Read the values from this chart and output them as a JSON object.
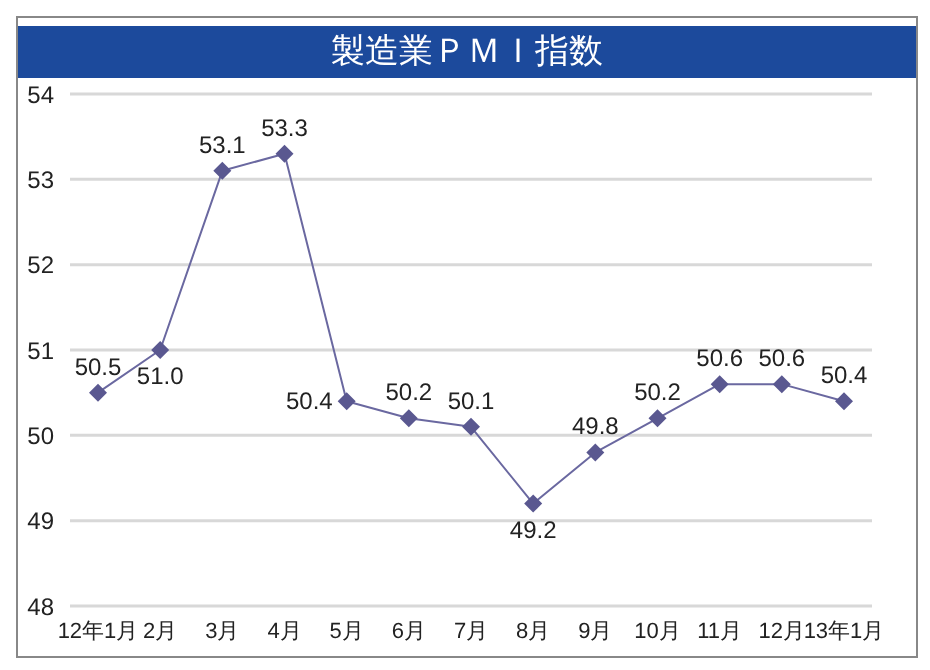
{
  "chart_data": {
    "type": "line",
    "title": "製造業ＰＭＩ指数",
    "categories": [
      "12年1月",
      "2月",
      "3月",
      "4月",
      "5月",
      "6月",
      "7月",
      "8月",
      "9月",
      "10月",
      "11月",
      "12月",
      "13年1月"
    ],
    "series": [
      {
        "color": "#6a68a0",
        "values": [
          50.5,
          51.0,
          53.1,
          53.3,
          50.4,
          50.2,
          50.1,
          49.2,
          49.8,
          50.2,
          50.6,
          50.6,
          50.4
        ],
        "value_labels": [
          "50.5",
          "51.0",
          "53.1",
          "53.3",
          "50.4",
          "50.2",
          "50.1",
          "49.2",
          "49.8",
          "50.2",
          "50.6",
          "50.6",
          "50.4"
        ]
      }
    ],
    "ylim": [
      48,
      54
    ],
    "yticks": [
      48,
      49,
      50,
      51,
      52,
      53,
      54
    ],
    "grid": "y",
    "marker": "diamond",
    "line_style": "solid",
    "legend": false
  }
}
